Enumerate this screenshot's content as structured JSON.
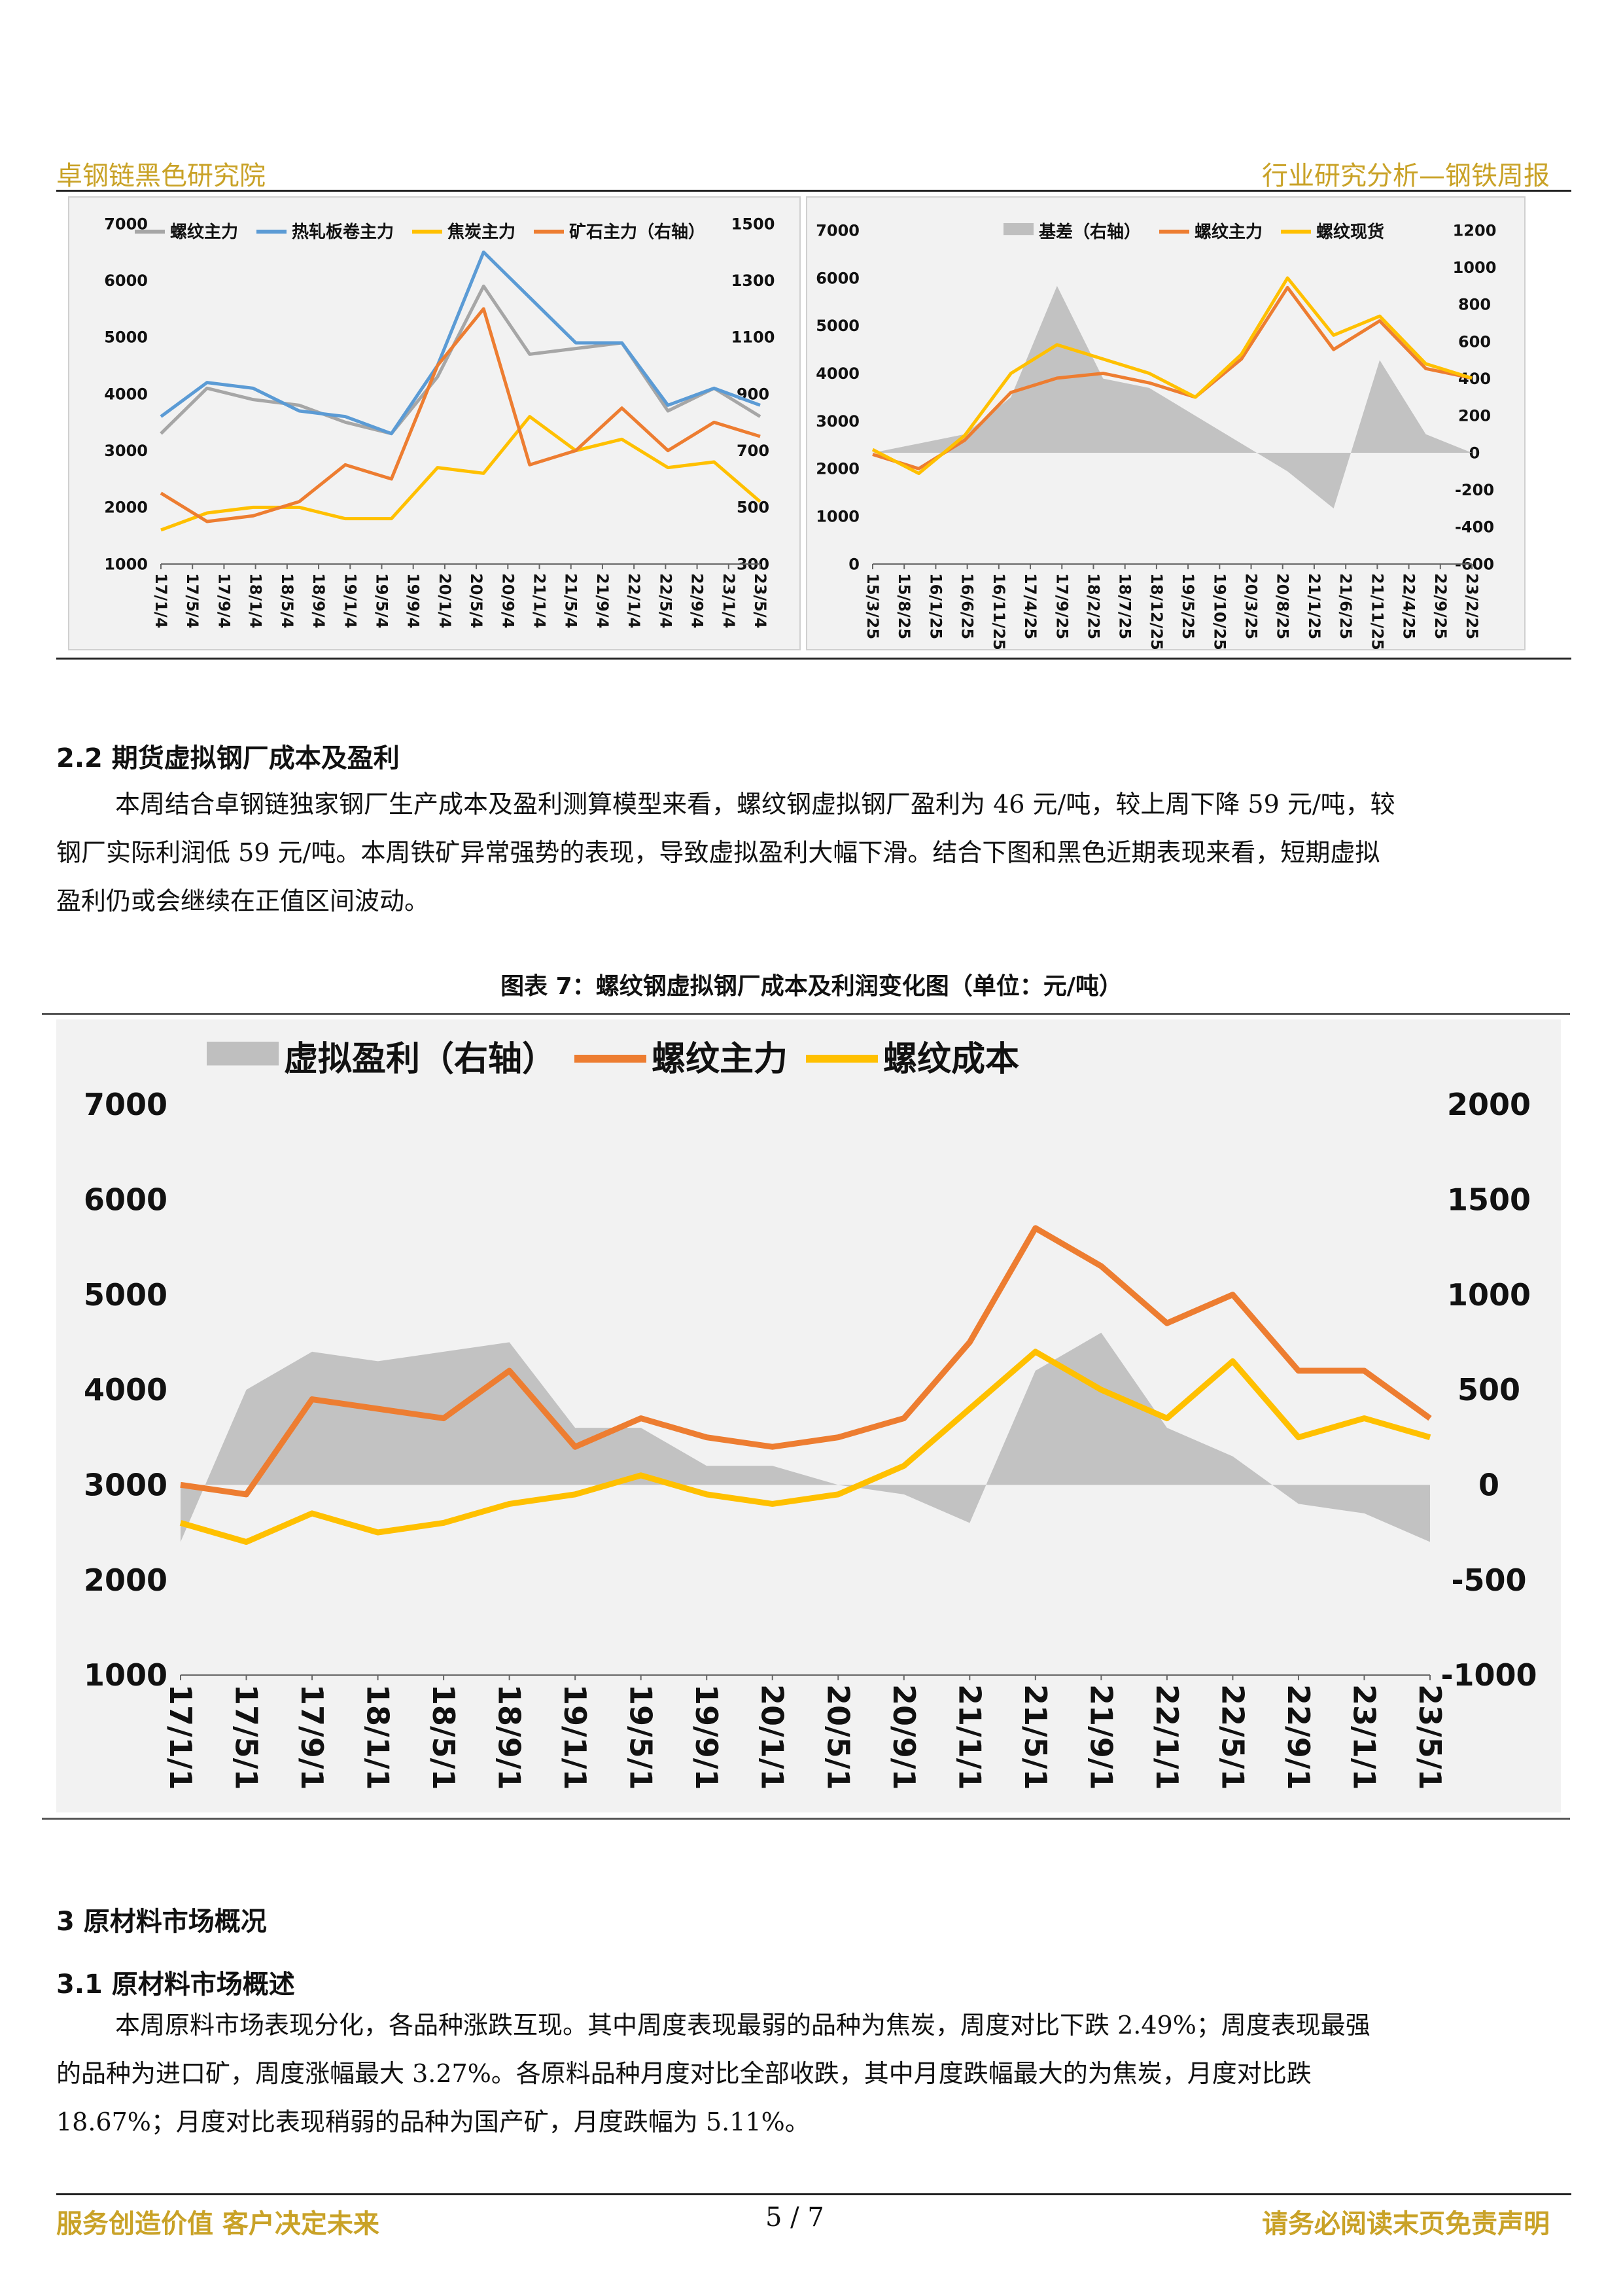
{
  "header": {
    "left": "卓钢链黑色研究院",
    "right": "行业研究分析—钢铁周报"
  },
  "chart_data": [
    {
      "type": "line",
      "series": [
        {
          "name": "螺纹主力",
          "color": "#a6a6a6",
          "axis": "left",
          "x": [
            "17/1/4",
            "17/9/4",
            "18/5/4",
            "19/1/4",
            "19/9/4",
            "20/5/4",
            "21/1/4",
            "21/5/4",
            "21/9/4",
            "22/1/4",
            "22/5/4",
            "22/9/4",
            "23/1/4",
            "23/5/4"
          ],
          "values": [
            3300,
            4100,
            3900,
            3800,
            3500,
            3300,
            4300,
            5900,
            4700,
            4800,
            4900,
            3700,
            4100,
            3600
          ]
        },
        {
          "name": "热轧板卷主力",
          "color": "#5b9bd5",
          "axis": "left",
          "x": [
            "17/1/4",
            "17/9/4",
            "18/5/4",
            "19/1/4",
            "19/9/4",
            "20/5/4",
            "21/1/4",
            "21/5/4",
            "21/9/4",
            "22/1/4",
            "22/5/4",
            "22/9/4",
            "23/1/4",
            "23/5/4"
          ],
          "values": [
            3600,
            4200,
            4100,
            3700,
            3600,
            3300,
            4500,
            6500,
            5700,
            4900,
            4900,
            3800,
            4100,
            3800
          ]
        },
        {
          "name": "焦炭主力",
          "color": "#ffc000",
          "axis": "left",
          "x": [
            "17/1/4",
            "17/9/4",
            "18/5/4",
            "19/1/4",
            "19/9/4",
            "20/5/4",
            "21/1/4",
            "21/5/4",
            "21/9/4",
            "22/1/4",
            "22/5/4",
            "22/9/4",
            "23/1/4",
            "23/5/4"
          ],
          "values": [
            1600,
            1900,
            2000,
            2000,
            1800,
            1800,
            2700,
            2600,
            3600,
            3000,
            3200,
            2700,
            2800,
            2100
          ]
        },
        {
          "name": "矿石主力（右轴）",
          "color": "#ed7d31",
          "axis": "right",
          "x": [
            "17/1/4",
            "17/9/4",
            "18/5/4",
            "19/1/4",
            "19/9/4",
            "20/5/4",
            "21/1/4",
            "21/5/4",
            "21/9/4",
            "22/1/4",
            "22/5/4",
            "22/9/4",
            "23/1/4",
            "23/5/4"
          ],
          "values": [
            550,
            450,
            470,
            520,
            650,
            600,
            1000,
            1200,
            650,
            700,
            850,
            700,
            800,
            750
          ]
        }
      ],
      "x_ticks": [
        "17/1/4",
        "17/5/4",
        "17/9/4",
        "18/1/4",
        "18/5/4",
        "18/9/4",
        "19/1/4",
        "19/5/4",
        "19/9/4",
        "20/1/4",
        "20/5/4",
        "20/9/4",
        "21/1/4",
        "21/5/4",
        "21/9/4",
        "22/1/4",
        "22/5/4",
        "22/9/4",
        "23/1/4",
        "23/5/4"
      ],
      "y_left_ticks": [
        "7000",
        "6000",
        "5000",
        "4000",
        "3000",
        "2000",
        "1000"
      ],
      "y_right_ticks": [
        "1500",
        "1300",
        "1100",
        "900",
        "700",
        "500",
        "300"
      ],
      "ylim_left": [
        1000,
        7000
      ],
      "ylim_right": [
        300,
        1500
      ]
    },
    {
      "type": "line",
      "series": [
        {
          "name": "基差（右轴）",
          "color": "#bfbfbf",
          "axis": "right",
          "kind": "area",
          "x": [
            "15/3/25",
            "16/1/25",
            "16/11/25",
            "17/9/25",
            "18/2/25",
            "18/7/25",
            "19/5/25",
            "20/3/25",
            "21/1/25",
            "21/6/25",
            "21/11/25",
            "22/4/25",
            "22/9/25",
            "23/2/25"
          ],
          "values": [
            0,
            50,
            100,
            300,
            900,
            400,
            350,
            200,
            50,
            -100,
            -300,
            500,
            100,
            0
          ]
        },
        {
          "name": "螺纹主力",
          "color": "#ed7d31",
          "axis": "left",
          "x": [
            "15/3/25",
            "16/1/25",
            "16/11/25",
            "17/9/25",
            "18/2/25",
            "18/7/25",
            "19/5/25",
            "20/3/25",
            "21/1/25",
            "21/6/25",
            "21/11/25",
            "22/4/25",
            "22/9/25",
            "23/2/25"
          ],
          "values": [
            2300,
            2000,
            2600,
            3600,
            3900,
            4000,
            3800,
            3500,
            4300,
            5800,
            4500,
            5100,
            4100,
            3900
          ]
        },
        {
          "name": "螺纹现货",
          "color": "#ffc000",
          "axis": "left",
          "x": [
            "15/3/25",
            "16/1/25",
            "16/11/25",
            "17/9/25",
            "18/2/25",
            "18/7/25",
            "19/5/25",
            "20/3/25",
            "21/1/25",
            "21/6/25",
            "21/11/25",
            "22/4/25",
            "22/9/25",
            "23/2/25"
          ],
          "values": [
            2400,
            1900,
            2700,
            4000,
            4600,
            4300,
            4000,
            3500,
            4400,
            6000,
            4800,
            5200,
            4200,
            3900
          ]
        }
      ],
      "x_ticks": [
        "15/3/25",
        "15/8/25",
        "16/1/25",
        "16/6/25",
        "16/11/25",
        "17/4/25",
        "17/9/25",
        "18/2/25",
        "18/7/25",
        "18/12/25",
        "19/5/25",
        "19/10/25",
        "20/3/25",
        "20/8/25",
        "21/1/25",
        "21/6/25",
        "21/11/25",
        "22/4/25",
        "22/9/25",
        "23/2/25"
      ],
      "y_left_ticks": [
        "7000",
        "6000",
        "5000",
        "4000",
        "3000",
        "2000",
        "1000",
        "0"
      ],
      "y_right_ticks": [
        "1200",
        "1000",
        "800",
        "600",
        "400",
        "200",
        "0",
        "-200",
        "-400",
        "-600"
      ],
      "ylim_left": [
        0,
        7000
      ],
      "ylim_right": [
        -600,
        1200
      ]
    },
    {
      "type": "line",
      "series": [
        {
          "name": "虚拟盈利（右轴）",
          "color": "#bfbfbf",
          "axis": "right",
          "kind": "area",
          "x": [
            "17/1/1",
            "17/5/1",
            "17/9/1",
            "18/1/1",
            "18/5/1",
            "18/9/1",
            "19/1/1",
            "19/5/1",
            "19/9/1",
            "20/1/1",
            "20/5/1",
            "20/9/1",
            "21/1/1",
            "21/5/1",
            "21/9/1",
            "22/1/1",
            "22/5/1",
            "22/9/1",
            "23/1/1",
            "23/5/1"
          ],
          "values": [
            -300,
            500,
            700,
            650,
            700,
            750,
            300,
            300,
            100,
            100,
            0,
            -50,
            -200,
            600,
            800,
            300,
            150,
            -100,
            -150,
            -300
          ]
        },
        {
          "name": "螺纹主力",
          "color": "#ed7d31",
          "axis": "left",
          "x": [
            "17/1/1",
            "17/5/1",
            "17/9/1",
            "18/1/1",
            "18/5/1",
            "18/9/1",
            "19/1/1",
            "19/5/1",
            "19/9/1",
            "20/1/1",
            "20/5/1",
            "20/9/1",
            "21/1/1",
            "21/5/1",
            "21/9/1",
            "22/1/1",
            "22/5/1",
            "22/9/1",
            "23/1/1",
            "23/5/1"
          ],
          "values": [
            3000,
            2900,
            3900,
            3800,
            3700,
            4200,
            3400,
            3700,
            3500,
            3400,
            3500,
            3700,
            4500,
            5700,
            5300,
            4700,
            5000,
            4200,
            4200,
            3700
          ]
        },
        {
          "name": "螺纹成本",
          "color": "#ffc000",
          "axis": "left",
          "x": [
            "17/1/1",
            "17/5/1",
            "17/9/1",
            "18/1/1",
            "18/5/1",
            "18/9/1",
            "19/1/1",
            "19/5/1",
            "19/9/1",
            "20/1/1",
            "20/5/1",
            "20/9/1",
            "21/1/1",
            "21/5/1",
            "21/9/1",
            "22/1/1",
            "22/5/1",
            "22/9/1",
            "23/1/1",
            "23/5/1"
          ],
          "values": [
            2600,
            2400,
            2700,
            2500,
            2600,
            2800,
            2900,
            3100,
            2900,
            2800,
            2900,
            3200,
            3800,
            4400,
            4000,
            3700,
            4300,
            3500,
            3700,
            3500
          ]
        }
      ],
      "x_ticks": [
        "17/1/1",
        "17/5/1",
        "17/9/1",
        "18/1/1",
        "18/5/1",
        "18/9/1",
        "19/1/1",
        "19/5/1",
        "19/9/1",
        "20/1/1",
        "20/5/1",
        "20/9/1",
        "21/1/1",
        "21/5/1",
        "21/9/1",
        "22/1/1",
        "22/5/1",
        "22/9/1",
        "23/1/1",
        "23/5/1"
      ],
      "y_left_ticks": [
        "7000",
        "6000",
        "5000",
        "4000",
        "3000",
        "2000",
        "1000"
      ],
      "y_right_ticks": [
        "2000",
        "1500",
        "1000",
        "500",
        "0",
        "-500",
        "-1000"
      ],
      "ylim_left": [
        1000,
        7000
      ],
      "ylim_right": [
        -1000,
        2000
      ]
    }
  ],
  "section_2_2": {
    "heading": "2.2 期货虚拟钢厂成本及盈利",
    "para": [
      "本周结合卓钢链独家钢厂生产成本及盈利测算模型来看，螺纹钢虚拟钢厂盈利为 46 元/吨，较上周下降 59 元/吨，较",
      "钢厂实际利润低 59 元/吨。本周铁矿异常强势的表现，导致虚拟盈利大幅下滑。结合下图和黑色近期表现来看，短期虚拟",
      "盈利仍或会继续在正值区间波动。"
    ]
  },
  "figure7_caption": "图表 7：螺纹钢虚拟钢厂成本及利润变化图（单位：元/吨）",
  "section_3": {
    "heading": "3 原材料市场概况"
  },
  "section_3_1": {
    "heading": "3.1 原材料市场概述",
    "para": [
      "本周原料市场表现分化，各品种涨跌互现。其中周度表现最弱的品种为焦炭，周度对比下跌 2.49%；周度表现最强",
      "的品种为进口矿，周度涨幅最大 3.27%。各原料品种月度对比全部收跌，其中月度跌幅最大的为焦炭，月度对比跌",
      "18.67%；月度对比表现稍弱的品种为国产矿，月度跌幅为 5.11%。"
    ]
  },
  "footer": {
    "left": "服务创造价值 客户决定未来",
    "page": "5 / 7",
    "right": "请务必阅读末页免责声明"
  }
}
